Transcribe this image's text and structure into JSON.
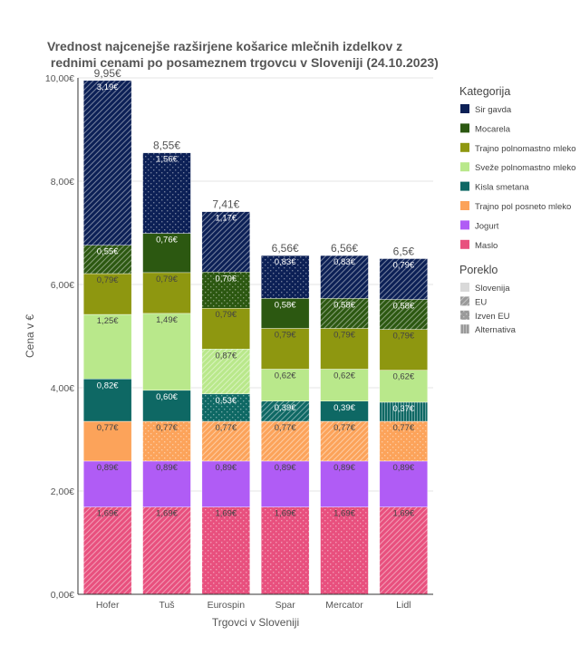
{
  "chart_data": {
    "type": "bar",
    "stacked": true,
    "title_line1": "Vrednost najcenejše razširjene košarice mlečnih izdelkov z",
    "title_line2": " rednimi cenami po posameznem trgovcu v Sloveniji (24.10.2023)",
    "xlabel": "Trgovci v Sloveniji",
    "ylabel": "Cena v €",
    "ylim": [
      0,
      10
    ],
    "yticks": [
      0,
      2,
      4,
      6,
      8,
      10
    ],
    "ytick_labels": [
      "0,00€",
      "2,00€",
      "4,00€",
      "6,00€",
      "8,00€",
      "10,00€"
    ],
    "grid": true,
    "categories": [
      "Hofer",
      "Tuš",
      "Eurospin",
      "Spar",
      "Mercator",
      "Lidl"
    ],
    "totals": [
      9.95,
      8.55,
      7.41,
      6.56,
      6.56,
      6.5
    ],
    "total_labels": [
      "9,95€",
      "8,55€",
      "7,41€",
      "6,56€",
      "6,56€",
      "6,5€"
    ],
    "series": [
      {
        "name": "Maslo",
        "color": "#e8507e",
        "values": [
          1.69,
          1.69,
          1.69,
          1.69,
          1.69,
          1.69
        ],
        "labels": [
          "1,69€",
          "1,69€",
          "1,69€",
          "1,69€",
          "1,69€",
          "1,69€"
        ],
        "origin": [
          "EU",
          "EU",
          "Izven EU",
          "Izven EU",
          "Izven EU",
          "EU"
        ]
      },
      {
        "name": "Jogurt",
        "color": "#b05cf5",
        "values": [
          0.89,
          0.89,
          0.89,
          0.89,
          0.89,
          0.89
        ],
        "labels": [
          "0,89€",
          "0,89€",
          "0,89€",
          "0,89€",
          "0,89€",
          "0,89€"
        ],
        "origin": [
          "Slovenija",
          "Slovenija",
          "Slovenija",
          "Slovenija",
          "Slovenija",
          "Slovenija"
        ]
      },
      {
        "name": "Trajno pol posneto mleko",
        "color": "#fca35a",
        "values": [
          0.77,
          0.77,
          0.77,
          0.77,
          0.77,
          0.77
        ],
        "labels": [
          "0,77€",
          "0,77€",
          "0,77€",
          "0,77€",
          "0,77€",
          "0,77€"
        ],
        "origin": [
          "Slovenija",
          "Izven EU",
          "EU",
          "EU",
          "EU",
          "Izven EU"
        ]
      },
      {
        "name": "Kisla smetana",
        "color": "#0e6864",
        "values": [
          0.82,
          0.6,
          0.53,
          0.39,
          0.39,
          0.37
        ],
        "labels": [
          "0,82€",
          "0,60€",
          "0,53€",
          "0,39€",
          "0,39€",
          "0,37€"
        ],
        "origin": [
          "Slovenija",
          "Slovenija",
          "Izven EU",
          "EU",
          "Slovenija",
          "Alternativa"
        ]
      },
      {
        "name": "Sveže polnomastno mleko",
        "color": "#b9e88b",
        "values": [
          1.25,
          1.49,
          0.87,
          0.62,
          0.62,
          0.62
        ],
        "labels": [
          "1,25€",
          "1,49€",
          "0,87€",
          "0,62€",
          "0,62€",
          "0,62€"
        ],
        "origin": [
          "Slovenija",
          "Slovenija",
          "EU",
          "Slovenija",
          "Slovenija",
          "Slovenija"
        ]
      },
      {
        "name": "Trajno polnomastno mleko",
        "color": "#8e9710",
        "values": [
          0.79,
          0.79,
          0.79,
          0.79,
          0.79,
          0.79
        ],
        "labels": [
          "0,79€",
          "0,79€",
          "0,79€",
          "0,79€",
          "0,79€",
          "0,79€"
        ],
        "origin": [
          "Slovenija",
          "Slovenija",
          "Slovenija",
          "Slovenija",
          "Slovenija",
          "Slovenija"
        ]
      },
      {
        "name": "Mocarela",
        "color": "#2c5811",
        "values": [
          0.55,
          0.76,
          0.7,
          0.58,
          0.58,
          0.58
        ],
        "labels": [
          "0,55€",
          "0,76€",
          "0,70€",
          "0,58€",
          "0,58€",
          "0,58€"
        ],
        "origin": [
          "EU",
          "Slovenija",
          "Izven EU",
          "Slovenija",
          "EU",
          "EU"
        ]
      },
      {
        "name": "Sir gavda",
        "color": "#0c2056",
        "values": [
          3.19,
          1.56,
          1.17,
          0.83,
          0.83,
          0.79
        ],
        "labels": [
          "3,19€",
          "1,56€",
          "1,17€",
          "0,83€",
          "0,83€",
          "0,79€"
        ],
        "origin": [
          "EU",
          "Izven EU",
          "EU",
          "Izven EU",
          "EU",
          "EU"
        ]
      }
    ],
    "legend_category_title": "Kategorija",
    "legend_category_order": [
      "Sir gavda",
      "Mocarela",
      "Trajno polnomastno mleko",
      "Sveže polnomastno mleko",
      "Kisla smetana",
      "Trajno pol posneto mleko",
      "Jogurt",
      "Maslo"
    ],
    "legend_origin_title": "Poreklo",
    "legend_origin": [
      "Slovenija",
      "EU",
      "Izven EU",
      "Alternativa"
    ],
    "legend_placement": "right"
  }
}
